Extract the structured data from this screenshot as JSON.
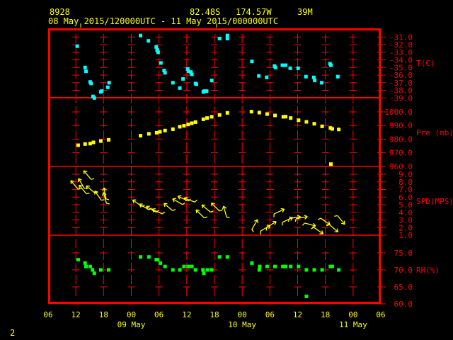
{
  "header": {
    "station": "8928",
    "latitude": "82.48S",
    "longitude": "174.57W",
    "elevation": "39M",
    "range": "08 May 2015/120000UTC - 11 May 2015/000000UTC"
  },
  "footer_number": "2",
  "colors": {
    "frame": "#ff0000",
    "text": "#ffff00",
    "temperature": "#00ffff",
    "pressure": "#ffff00",
    "wind": "#ffff00",
    "rh": "#00ff00"
  },
  "chart_data": {
    "type": "scatter",
    "x_tick_labels": [
      "06",
      "12",
      "18",
      "00",
      "06",
      "12",
      "18",
      "00",
      "06",
      "12",
      "18",
      "00",
      "06"
    ],
    "x_tick_hours": [
      0,
      6,
      12,
      18,
      24,
      30,
      36,
      42,
      48,
      54,
      60,
      66,
      72
    ],
    "date_labels": [
      {
        "hour": 18,
        "label": "09 May"
      },
      {
        "hour": 42,
        "label": "10 May"
      },
      {
        "hour": 66,
        "label": "11 May"
      }
    ],
    "panels": [
      {
        "name": "temperature",
        "label": "T(C)",
        "ylim": [
          -39,
          -31
        ],
        "ticks": [
          "-31.0",
          "-32.0",
          "-33.0",
          "-34.0",
          "-35.0",
          "-36.0",
          "-37.0",
          "-38.0",
          "-39.0"
        ],
        "tick_values": [
          -31,
          -32,
          -33,
          -34,
          -35,
          -36,
          -37,
          -38,
          -39
        ],
        "points": [
          [
            6.3,
            -32.2
          ],
          [
            8.0,
            -35.0
          ],
          [
            8.2,
            -35.5
          ],
          [
            9.1,
            -36.9
          ],
          [
            9.3,
            -37.1
          ],
          [
            9.7,
            -38.8
          ],
          [
            10.0,
            -39.0
          ],
          [
            11.4,
            -38.2
          ],
          [
            11.6,
            -38.1
          ],
          [
            12.9,
            -37.6
          ],
          [
            13.2,
            -37.0
          ],
          [
            20.0,
            -30.8
          ],
          [
            21.7,
            -31.5
          ],
          [
            23.4,
            -32.3
          ],
          [
            23.6,
            -32.7
          ],
          [
            23.8,
            -33.0
          ],
          [
            24.4,
            -34.4
          ],
          [
            25.1,
            -35.4
          ],
          [
            25.3,
            -35.7
          ],
          [
            27.0,
            -37.0
          ],
          [
            28.5,
            -37.7
          ],
          [
            29.2,
            -36.5
          ],
          [
            30.2,
            -35.2
          ],
          [
            30.4,
            -35.5
          ],
          [
            30.9,
            -35.6
          ],
          [
            31.1,
            -35.9
          ],
          [
            31.9,
            -37.1
          ],
          [
            32.1,
            -37.2
          ],
          [
            33.6,
            -38.2
          ],
          [
            33.8,
            -38.1
          ],
          [
            34.3,
            -38.1
          ],
          [
            35.4,
            -36.7
          ],
          [
            37.1,
            -31.2
          ],
          [
            38.8,
            -31.2
          ],
          [
            38.8,
            -30.8
          ],
          [
            44.1,
            -34.2
          ],
          [
            45.6,
            -36.1
          ],
          [
            47.3,
            -36.3
          ],
          [
            49.0,
            -34.8
          ],
          [
            49.2,
            -35.0
          ],
          [
            50.7,
            -34.7
          ],
          [
            51.4,
            -34.7
          ],
          [
            52.4,
            -35.1
          ],
          [
            54.1,
            -35.1
          ],
          [
            55.8,
            -36.2
          ],
          [
            57.5,
            -36.3
          ],
          [
            57.7,
            -36.7
          ],
          [
            59.2,
            -37.0
          ],
          [
            61.0,
            -34.5
          ],
          [
            61.2,
            -34.7
          ],
          [
            62.7,
            -36.2
          ]
        ]
      },
      {
        "name": "pressure",
        "label": "Pre (mb)",
        "ylim": [
          960,
          1005
        ],
        "ticks": [
          "1000.0",
          "990.0",
          "980.0",
          "970.0",
          "960.0"
        ],
        "tick_values": [
          1000,
          990,
          980,
          970,
          960
        ],
        "points": [
          [
            6.5,
            975.5
          ],
          [
            8.0,
            976.4
          ],
          [
            9.1,
            976.7
          ],
          [
            9.8,
            977.6
          ],
          [
            11.4,
            978.6
          ],
          [
            13.1,
            979.5
          ],
          [
            20.0,
            982.5
          ],
          [
            21.8,
            983.9
          ],
          [
            23.5,
            984.7
          ],
          [
            24.2,
            985.4
          ],
          [
            25.3,
            986.3
          ],
          [
            27.0,
            987.3
          ],
          [
            28.5,
            989.1
          ],
          [
            29.4,
            989.8
          ],
          [
            30.3,
            990.8
          ],
          [
            31.1,
            991.7
          ],
          [
            31.9,
            992.5
          ],
          [
            33.6,
            994.6
          ],
          [
            34.4,
            995.5
          ],
          [
            35.4,
            996.4
          ],
          [
            37.1,
            997.8
          ],
          [
            38.8,
            999.3
          ],
          [
            44.0,
            1000.2
          ],
          [
            45.7,
            999.5
          ],
          [
            47.4,
            998.4
          ],
          [
            49.1,
            997.4
          ],
          [
            50.9,
            996.4
          ],
          [
            51.4,
            996.5
          ],
          [
            52.5,
            995.5
          ],
          [
            54.2,
            993.9
          ],
          [
            55.9,
            992.7
          ],
          [
            57.6,
            991.3
          ],
          [
            59.3,
            989.4
          ],
          [
            61.1,
            988.2
          ],
          [
            61.5,
            987.5
          ],
          [
            62.9,
            987.1
          ],
          [
            61.2,
            961.6
          ]
        ]
      },
      {
        "name": "wind_speed",
        "label": "SPD(MPS)",
        "ylim": [
          1,
          9
        ],
        "ticks": [
          "9.0",
          "8.0",
          "7.0",
          "6.0",
          "5.0",
          "4.0",
          "3.0",
          "2.0",
          "1.0"
        ],
        "tick_values": [
          9,
          8,
          7,
          6,
          5,
          4,
          3,
          2,
          1
        ],
        "points": [
          [
            8.5,
            8.9,
            320
          ],
          [
            5.7,
            7.6,
            320
          ],
          [
            7.2,
            7.8,
            330
          ],
          [
            7.5,
            7.0,
            320
          ],
          [
            9.2,
            7.0,
            310
          ],
          [
            10.8,
            6.2,
            325
          ],
          [
            12.3,
            6.5,
            350
          ],
          [
            12.3,
            5.9,
            345
          ],
          [
            19.3,
            5.2,
            305
          ],
          [
            20.8,
            4.7,
            300
          ],
          [
            22.3,
            4.4,
            300
          ],
          [
            23.6,
            4.1,
            295
          ],
          [
            26.0,
            4.7,
            310
          ],
          [
            28.0,
            5.4,
            300
          ],
          [
            29.2,
            5.8,
            295
          ],
          [
            30.6,
            5.6,
            290
          ],
          [
            32.9,
            3.8,
            315
          ],
          [
            34.2,
            4.5,
            310
          ],
          [
            36.2,
            4.7,
            315
          ],
          [
            38.3,
            4.1,
            345
          ],
          [
            44.7,
            2.4,
            30
          ],
          [
            47.0,
            1.9,
            60
          ],
          [
            48.3,
            2.4,
            60
          ],
          [
            50.0,
            4.1,
            65
          ],
          [
            51.8,
            3.0,
            65
          ],
          [
            53.4,
            3.3,
            80
          ],
          [
            54.9,
            3.3,
            80
          ],
          [
            56.7,
            2.4,
            105
          ],
          [
            58.5,
            1.6,
            125
          ],
          [
            60.0,
            2.8,
            125
          ],
          [
            61.8,
            1.9,
            130
          ],
          [
            63.4,
            3.0,
            140
          ]
        ]
      },
      {
        "name": "relative_humidity",
        "label": "RH(%)",
        "ylim": [
          60,
          75
        ],
        "ticks": [
          "75.0",
          "70.0",
          "65.0",
          "60.0"
        ],
        "tick_values": [
          75,
          70,
          65,
          60
        ],
        "points": [
          [
            6.5,
            73.0
          ],
          [
            8.0,
            72.0
          ],
          [
            8.2,
            71.0
          ],
          [
            9.1,
            71.0
          ],
          [
            9.6,
            70.0
          ],
          [
            10.0,
            69.0
          ],
          [
            11.4,
            70.0
          ],
          [
            13.1,
            70.0
          ],
          [
            20.0,
            73.8
          ],
          [
            21.8,
            73.8
          ],
          [
            23.4,
            73.0
          ],
          [
            23.7,
            73.0
          ],
          [
            24.3,
            72.0
          ],
          [
            25.3,
            71.0
          ],
          [
            27.0,
            70.0
          ],
          [
            28.5,
            70.0
          ],
          [
            29.4,
            71.0
          ],
          [
            30.3,
            71.0
          ],
          [
            31.1,
            71.0
          ],
          [
            31.9,
            70.0
          ],
          [
            33.5,
            70.0
          ],
          [
            33.7,
            69.0
          ],
          [
            34.5,
            70.0
          ],
          [
            35.4,
            70.0
          ],
          [
            37.1,
            73.8
          ],
          [
            38.8,
            73.8
          ],
          [
            44.1,
            72.0
          ],
          [
            45.7,
            70.0
          ],
          [
            45.8,
            71.0
          ],
          [
            47.4,
            71.0
          ],
          [
            49.1,
            71.0
          ],
          [
            50.8,
            71.0
          ],
          [
            51.4,
            71.0
          ],
          [
            52.5,
            71.0
          ],
          [
            54.2,
            71.0
          ],
          [
            55.9,
            70.0
          ],
          [
            57.6,
            70.0
          ],
          [
            59.3,
            70.0
          ],
          [
            61.1,
            71.0
          ],
          [
            61.5,
            71.0
          ],
          [
            62.9,
            70.0
          ],
          [
            55.9,
            62.2
          ]
        ]
      }
    ]
  }
}
